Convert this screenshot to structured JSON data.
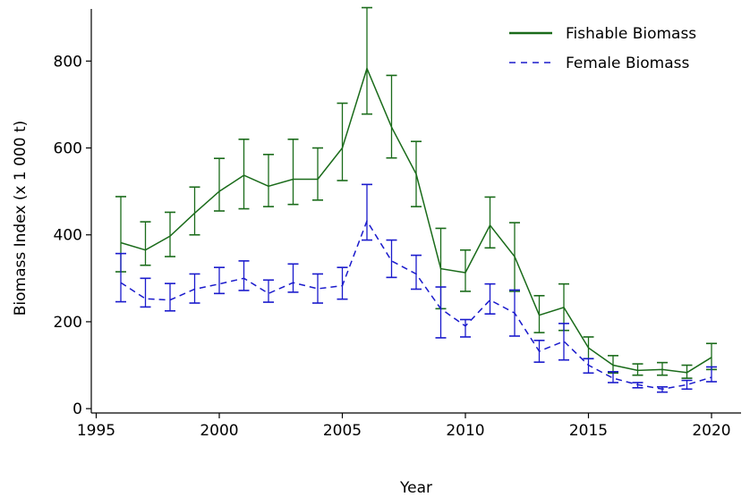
{
  "chart_data": {
    "type": "line",
    "xlabel": "Year",
    "ylabel": "Biomass Index (x 1 000 t)",
    "xlim": [
      1994.8,
      2021.2
    ],
    "ylim": [
      -10,
      920
    ],
    "xticks": [
      1995,
      2000,
      2005,
      2010,
      2015,
      2020
    ],
    "yticks": [
      0,
      200,
      400,
      600,
      800
    ],
    "grid": false,
    "legend_position": "top-right",
    "x": [
      1996,
      1997,
      1998,
      1999,
      2000,
      2001,
      2002,
      2003,
      2004,
      2005,
      2006,
      2007,
      2008,
      2009,
      2010,
      2011,
      2012,
      2013,
      2014,
      2015,
      2016,
      2017,
      2018,
      2019,
      2020
    ],
    "series": [
      {
        "name": "Fishable Biomass",
        "color": "#1a6b1a",
        "style": "solid",
        "values": [
          382,
          365,
          397,
          450,
          500,
          537,
          512,
          528,
          528,
          600,
          783,
          648,
          540,
          322,
          313,
          422,
          350,
          215,
          233,
          140,
          100,
          88,
          90,
          83,
          118
        ],
        "lower": [
          315,
          330,
          350,
          400,
          455,
          460,
          465,
          470,
          480,
          525,
          678,
          577,
          465,
          230,
          270,
          370,
          270,
          175,
          180,
          115,
          82,
          77,
          77,
          70,
          90
        ],
        "upper": [
          488,
          430,
          452,
          510,
          576,
          620,
          585,
          620,
          600,
          703,
          923,
          767,
          615,
          415,
          365,
          487,
          428,
          260,
          287,
          165,
          122,
          103,
          106,
          100,
          150
        ]
      },
      {
        "name": "Female Biomass",
        "color": "#1a1acc",
        "style": "dashed",
        "values": [
          290,
          253,
          250,
          275,
          287,
          300,
          265,
          290,
          276,
          283,
          432,
          340,
          310,
          230,
          190,
          250,
          220,
          132,
          155,
          100,
          70,
          55,
          45,
          55,
          72
        ],
        "lower": [
          246,
          234,
          225,
          243,
          265,
          272,
          245,
          268,
          243,
          252,
          388,
          302,
          275,
          163,
          165,
          218,
          167,
          107,
          112,
          82,
          60,
          48,
          38,
          45,
          62
        ],
        "upper": [
          357,
          300,
          288,
          310,
          325,
          340,
          296,
          333,
          310,
          325,
          516,
          388,
          353,
          280,
          205,
          287,
          273,
          157,
          196,
          115,
          85,
          60,
          50,
          65,
          96
        ]
      }
    ]
  }
}
